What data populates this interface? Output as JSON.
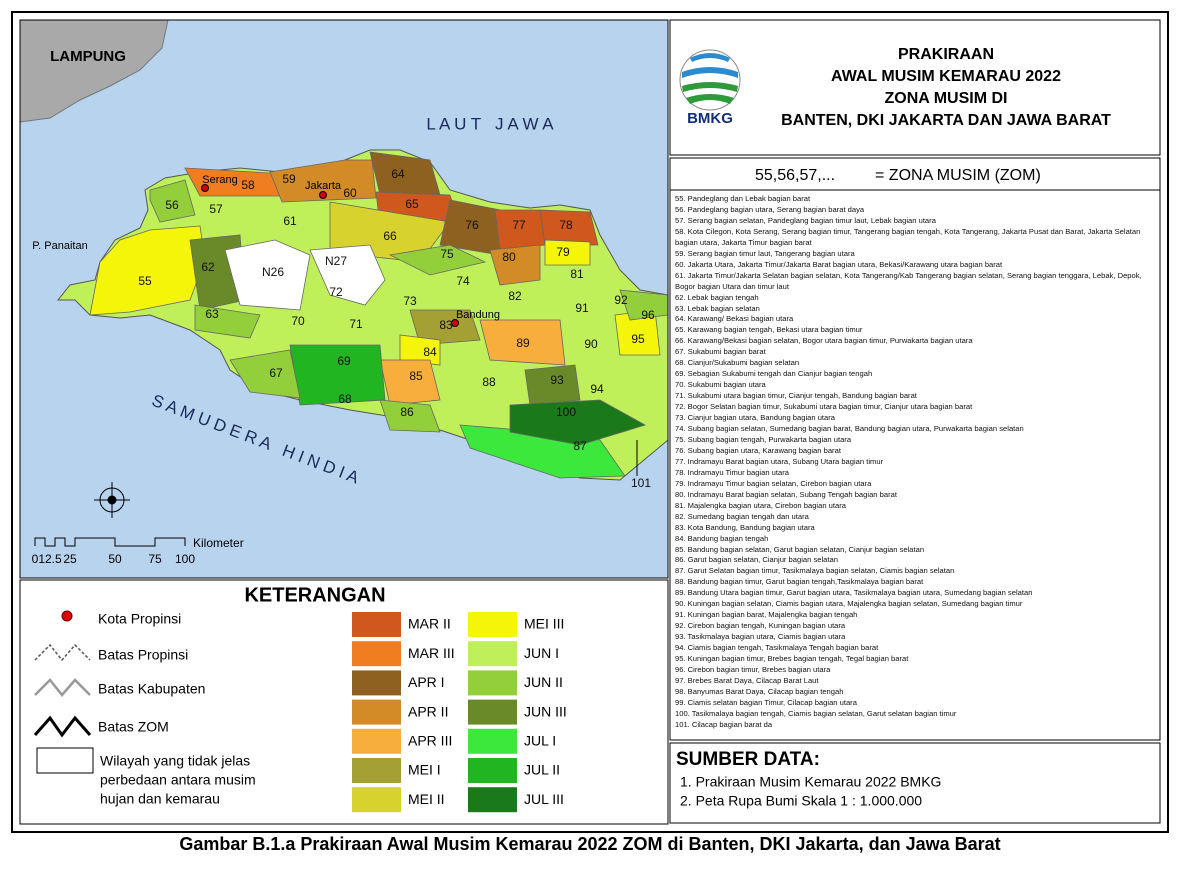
{
  "header": {
    "logo_text": "BMKG",
    "title_lines": [
      "PRAKIRAAN",
      "AWAL MUSIM KEMARAU 2022",
      "ZONA MUSIM DI",
      "BANTEN, DKI JAKARTA DAN JAWA BARAT"
    ]
  },
  "zom_note": {
    "example": "55,56,57,...",
    "meaning": "= ZONA MUSIM (ZOM)"
  },
  "zone_list": [
    "55. Pandeglang dan  Lebak bagian barat",
    "56. Pandeglang bagian utara, Serang bagian barat daya",
    "57. Serang bagian selatan,  Pandeglang bagian timur laut,  Lebak bagian utara",
    "58. Kota Cilegon, Kota Serang,  Serang bagian timur,  Tangerang bagian tengah, Kota Tangerang, Jakarta Pusat dan Barat, Jakarta Selatan bagian utara, Jakarta Timur bagian barat",
    "59. Serang bagian timur laut, Tangerang bagian utara",
    "60. Jakarta Utara, Jakarta Timur/Jakarta Barat  bagian utara, Bekasi/Karawang utara bagian barat",
    "61. Jakarta Timur/Jakarta Selatan bagian selatan, Kota Tangerang/Kab Tangerang bagian selatan,  Serang bagian tenggara, Lebak, Depok, Bogor bagian Utara dan timur laut",
    "62. Lebak bagian tengah",
    "63. Lebak bagian selatan",
    "64. Karawang/ Bekasi  bagian utara",
    "65. Karawang bagian tengah, Bekasi utara bagian timur",
    "66. Karawang/Bekasi bagian selatan, Bogor utara bagian timur, Purwakarta bagian utara",
    "67. Sukabumi bagian barat",
    "68. Cianjur/Sukabumi bagian selatan",
    "69. Sebagian Sukabumi tengah dan Cianjur bagian tengah",
    "70. Sukabumi bagian utara",
    "71. Sukabumi utara bagian timur, Cianjur tengah,  Bandung bagian barat",
    "72. Bogor Selatan bagian timur, Sukabumi utara bagian timur, Cianjur utara bagian barat",
    "73. Cianjur bagian utara, Bandung bagian utara",
    "74. Subang bagian selatan, Sumedang bagian barat,  Bandung bagian utara, Purwakarta bagian selatan",
    "75. Subang bagian tengah, Purwakarta bagian utara",
    "76. Subang bagian utara,  Karawang bagian barat",
    "77. Indramayu Barat bagian utara, Subang Utara bagian timur",
    "78. Indramayu Timur bagian utara",
    "79. Indramayu Timur bagian selatan,  Cirebon bagian utara",
    "80. Indramayu Barat bagian selatan, Subang Tengah bagian barat",
    "81. Majalengka bagian utara, Cirebon bagian utara",
    "82. Sumedang bagian tengah dan utara",
    "83. Kota Bandung, Bandung bagian utara",
    "84. Bandung bagian tengah",
    "85. Bandung bagian selatan, Garut bagian selatan, Cianjur bagian selatan",
    "86. Garut bagian selatan, Cianjur bagian selatan",
    "87. Garut Selatan bagian timur, Tasikmalaya bagian selatan, Ciamis bagian selatan",
    "88. Bandung bagian timur, Garut bagian tengah,Tasikmalaya bagian barat",
    "89. Bandung Utara bagian timur, Garut bagian utara, Tasikmalaya bagian utara, Sumedang bagian selatan",
    "90. Kuningan bagian selatan, Ciamis bagian utara, Majalengka bagian selatan, Sumedang bagian timur",
    "91. Kuningan bagian barat, Majalengka bagian tengah",
    "92. Cirebon bagian tengah,  Kuningan bagian utara",
    "93. Tasikmalaya bagian utara, Ciamis bagian utara",
    "94. Ciamis bagian tengah, Tasikmalaya Tengah bagian barat",
    "95. Kuningan bagian timur, Brebes bagian tengah, Tegal bagian barat",
    "96. Cirebon bagian timur, Brebes bagian utara",
    "97. Brebes Barat Daya, Cilacap Barat Laut",
    "98. Banyumas Barat Daya, Cilacap bagian tengah",
    "99. Ciamis selatan bagian Timur, Cilacap bagian utara",
    "100. Tasikmalaya bagian tengah, Ciamis bagian selatan, Garut selatan bagian timur",
    "101. Cilacap bagian barat da"
  ],
  "sources": {
    "title": "SUMBER DATA:",
    "items": [
      "1. Prakiraan Musim Kemarau 2022 BMKG",
      "2. Peta Rupa Bumi Skala 1 : 1.000.000"
    ]
  },
  "map": {
    "place_labels": [
      "LAMPUNG",
      "L A U T   J A W A",
      "S A M U D E R A   H I N D I A",
      "P. Panaitan",
      "Serang",
      "Jakarta",
      "Bandung"
    ],
    "zone_labels": [
      "55",
      "56",
      "57",
      "58",
      "59",
      "60",
      "61",
      "62",
      "63",
      "64",
      "65",
      "66",
      "67",
      "68",
      "69",
      "70",
      "71",
      "72",
      "73",
      "74",
      "75",
      "76",
      "77",
      "78",
      "79",
      "80",
      "81",
      "82",
      "83",
      "84",
      "85",
      "86",
      "87",
      "88",
      "89",
      "90",
      "91",
      "92",
      "93",
      "94",
      "95",
      "96",
      "100",
      "101",
      "N26",
      "N27"
    ],
    "scale": {
      "ticks": [
        0,
        12.5,
        25,
        50,
        75,
        100
      ],
      "unit": "Kilometer"
    }
  },
  "legend": {
    "title": "KETERANGAN",
    "symbols": [
      "Kota Propinsi",
      "Batas Propinsi",
      "Batas Kabupaten",
      "Batas ZOM"
    ],
    "unclear_area": [
      "Wilayah yang tidak jelas",
      "perbedaan antara musim",
      "hujan dan kemarau"
    ],
    "classes": [
      {
        "label": "MAR II",
        "color": "#d0581c"
      },
      {
        "label": "MAR III",
        "color": "#f07d20"
      },
      {
        "label": "APR I",
        "color": "#8e6120"
      },
      {
        "label": "APR II",
        "color": "#d38b28"
      },
      {
        "label": "APR III",
        "color": "#f7ae3c"
      },
      {
        "label": "MEI I",
        "color": "#a5a033"
      },
      {
        "label": "MEI II",
        "color": "#d8d22f"
      },
      {
        "label": "MEI III",
        "color": "#f5f50a"
      },
      {
        "label": "JUN I",
        "color": "#bff05a"
      },
      {
        "label": "JUN II",
        "color": "#92cf3a"
      },
      {
        "label": "JUN III",
        "color": "#6a8a2a"
      },
      {
        "label": "JUL I",
        "color": "#3be83b"
      },
      {
        "label": "JUL II",
        "color": "#22b522"
      },
      {
        "label": "JUL III",
        "color": "#1a7a1a"
      }
    ]
  },
  "caption": "Gambar B.1.a Prakiraan Awal Musim Kemarau 2022 ZOM di Banten, DKI Jakarta, dan Jawa Barat"
}
